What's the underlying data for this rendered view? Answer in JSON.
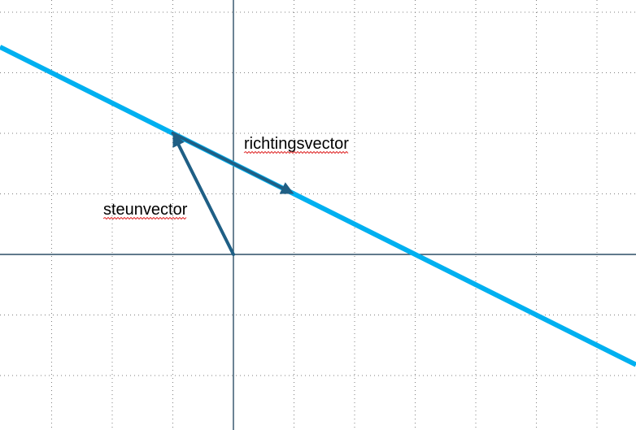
{
  "colors": {
    "line": "#00b0f0",
    "vector": "#1f5f85",
    "axis": "#2c4e66",
    "spellcheck": "#e03030"
  },
  "labels": {
    "steunvector": "steunvector",
    "richtingsvector": "richtingsvector"
  },
  "grid": {
    "visible": true
  },
  "line": {
    "point": [
      -1,
      2
    ],
    "direction": [
      2,
      -1
    ]
  },
  "steunvector": {
    "from": [
      0,
      0
    ],
    "to": [
      -1,
      2
    ]
  },
  "richtingsvector": {
    "from": [
      -1,
      2
    ],
    "to": [
      1,
      1
    ]
  }
}
